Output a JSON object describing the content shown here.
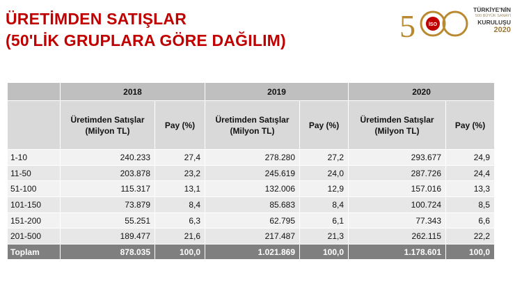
{
  "title": {
    "line1": "ÜRETİMDEN SATIŞLAR",
    "line2": "(50'LİK GRUPLARA GÖRE DAĞILIM)"
  },
  "logo": {
    "number": "500",
    "badge": "İSO",
    "line1": "TÜRKİYE'NİN",
    "line2": "500 BÜYÜK SANAYİ",
    "line3": "KURULUŞU",
    "line4": "2020",
    "color": "#b8892e"
  },
  "table": {
    "years": [
      "2018",
      "2019",
      "2020"
    ],
    "sub_headers": {
      "sales": "Üretimden Satışlar (Milyon TL)",
      "share": "Pay (%)"
    },
    "rows": [
      {
        "group": "1-10",
        "values": [
          "240.233",
          "27,4",
          "278.280",
          "27,2",
          "293.677",
          "24,9"
        ]
      },
      {
        "group": "11-50",
        "values": [
          "203.878",
          "23,2",
          "245.619",
          "24,0",
          "287.726",
          "24,4"
        ]
      },
      {
        "group": "51-100",
        "values": [
          "115.317",
          "13,1",
          "132.006",
          "12,9",
          "157.016",
          "13,3"
        ]
      },
      {
        "group": "101-150",
        "values": [
          "73.879",
          "8,4",
          "85.683",
          "8,4",
          "100.724",
          "8,5"
        ]
      },
      {
        "group": "151-200",
        "values": [
          "55.251",
          "6,3",
          "62.795",
          "6,1",
          "77.343",
          "6,6"
        ]
      },
      {
        "group": "201-500",
        "values": [
          "189.477",
          "21,6",
          "217.487",
          "21,3",
          "262.115",
          "22,2"
        ]
      }
    ],
    "total": {
      "group": "Toplam",
      "values": [
        "878.035",
        "100,0",
        "1.021.869",
        "100,0",
        "1.178.601",
        "100,0"
      ]
    }
  },
  "colors": {
    "title": "#c00000",
    "header_year": "#bfbfbf",
    "header_sub": "#d9d9d9",
    "row_light": "#f2f2f2",
    "row_dark": "#e7e7e7",
    "total_bg": "#7f7f7f"
  }
}
